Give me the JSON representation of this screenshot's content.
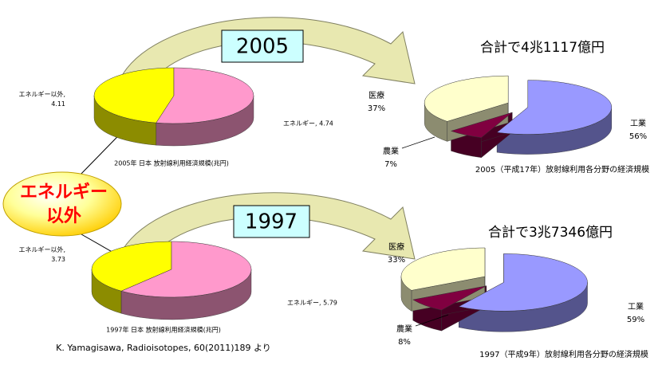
{
  "chart_data": [
    {
      "type": "pie",
      "title": "2005年 日本 放射線利用経済規模(兆円)",
      "values": [
        4.11,
        4.74
      ],
      "value_labels": [
        "エネルギー以外, 4.11",
        "エネルギー, 4.74"
      ],
      "colors": [
        "#ffff00",
        "#ff99cc"
      ]
    },
    {
      "type": "pie",
      "title": "合計で4兆1117億円",
      "caption": "2005（平成17年）放射線利用各分野の経済規模",
      "categories": [
        "工業",
        "農業",
        "医療"
      ],
      "values": [
        56,
        7,
        37
      ],
      "value_labels": [
        "56%",
        "7%",
        "37%"
      ],
      "colors": [
        "#9999ff",
        "#800040",
        "#ffffcc"
      ]
    },
    {
      "type": "pie",
      "title": "1997年 日本 放射線利用経済規模(兆円)",
      "values": [
        3.73,
        5.79
      ],
      "value_labels": [
        "エネルギー以外, 3.73",
        "エネルギー, 5.79"
      ],
      "colors": [
        "#ffff00",
        "#ff99cc"
      ]
    },
    {
      "type": "pie",
      "title": "合計で3兆7346億円",
      "caption": "1997（平成9年）放射線利用各分野の経済規模",
      "categories": [
        "工業",
        "農業",
        "医療"
      ],
      "values": [
        59,
        8,
        33
      ],
      "value_labels": [
        "59%",
        "8%",
        "33%"
      ],
      "colors": [
        "#9999ff",
        "#800040",
        "#ffffcc"
      ]
    }
  ],
  "years": [
    "2005",
    "1997"
  ],
  "callout": [
    "エネルギー",
    "以外"
  ],
  "source": "K. Yamagisawa, Radioisotopes, 60(2011)189 より"
}
